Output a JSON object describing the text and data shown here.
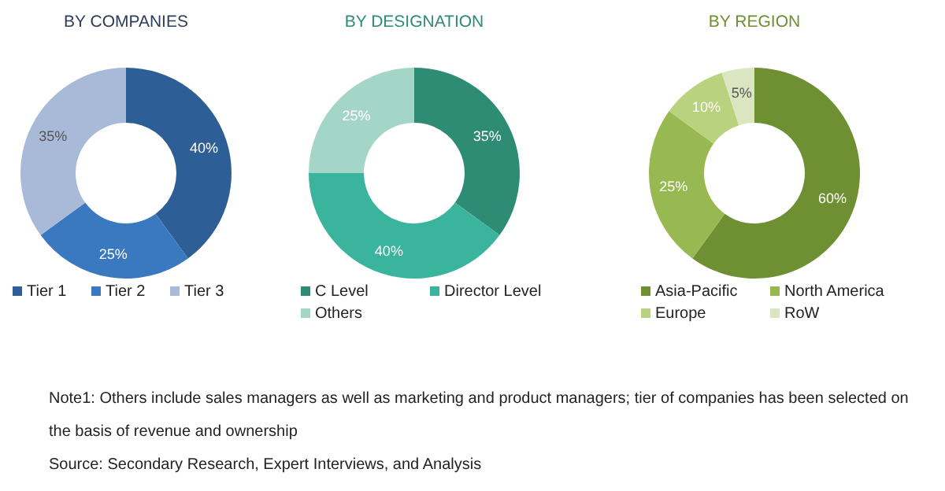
{
  "chart_data": [
    {
      "type": "donut",
      "title": "BY COMPANIES",
      "categories": [
        "Tier 1",
        "Tier 2",
        "Tier 3"
      ],
      "values": [
        40,
        25,
        35
      ],
      "value_labels": [
        "40%",
        "25%",
        "35%"
      ],
      "colors": [
        "#2d5f96",
        "#3a78bf",
        "#a9b9d8"
      ],
      "legend": "bottom"
    },
    {
      "type": "donut",
      "title": "BY DESIGNATION",
      "categories": [
        "C Level",
        "Director Level",
        "Others"
      ],
      "values": [
        35,
        40,
        25
      ],
      "value_labels": [
        "35%",
        "40%",
        "25%"
      ],
      "colors": [
        "#2e8b74",
        "#3bb49d",
        "#a4d6c8"
      ],
      "legend": "bottom"
    },
    {
      "type": "donut",
      "title": "BY REGION",
      "categories": [
        "Asia-Pacific",
        "North America",
        "Europe",
        "RoW"
      ],
      "values": [
        60,
        25,
        10,
        5
      ],
      "value_labels": [
        "60%",
        "25%",
        "10%",
        "5%"
      ],
      "colors": [
        "#6e8f32",
        "#98b851",
        "#b9d27e",
        "#dbe6c0"
      ],
      "legend": "bottom",
      "annotations": [
        "Note1: Others include sales managers as well as marketing and product managers; tier of companies has been selected on the basis of revenue and ownership",
        "Source: Secondary Research, Expert Interviews, and Analysis"
      ]
    }
  ]
}
